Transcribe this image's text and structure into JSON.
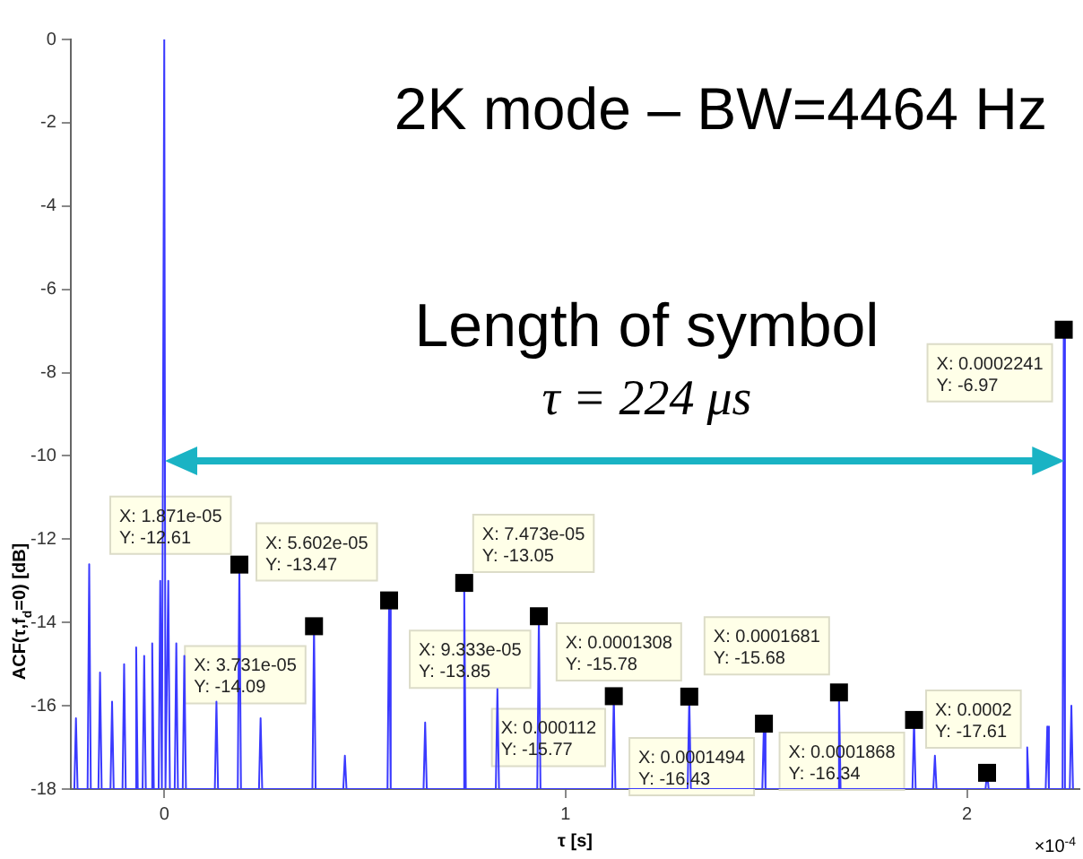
{
  "chart_data": {
    "type": "line",
    "xlabel": "τ [s]",
    "ylabel": "ACF(τ,f$_{d}$=0) [dB]",
    "xlim": [
      -0.233,
      2.28
    ],
    "xticks": [
      0,
      1,
      2
    ],
    "ylim": [
      -18,
      0
    ],
    "yticks": [
      -18,
      -16,
      -14,
      -12,
      -10,
      -8,
      -6,
      -4,
      -2,
      0
    ],
    "grid": false,
    "legend": false,
    "marker": "none",
    "line_style": "solid",
    "series": [
      {
        "color": "#3a3aff",
        "x": [
          -0.224,
          -0.22,
          -0.216,
          -0.191,
          -0.187,
          -0.183,
          -0.164,
          -0.16,
          -0.156,
          -0.134,
          -0.13,
          -0.126,
          -0.104,
          -0.1,
          -0.096,
          -0.074,
          -0.07,
          -0.066,
          -0.054,
          -0.05,
          -0.046,
          -0.034,
          -0.03,
          -0.026,
          -0.014,
          -0.01,
          -0.006,
          -0.003,
          0,
          0.003,
          0.006,
          0.01,
          0.014,
          0.026,
          0.03,
          0.034,
          0.046,
          0.05,
          0.054,
          0.126,
          0.13,
          0.134,
          0.1831,
          0.1871,
          0.1911,
          0.236,
          0.24,
          0.244,
          0.3691,
          0.3731,
          0.3771,
          0.446,
          0.45,
          0.454,
          0.5562,
          0.5602,
          0.5642,
          0.646,
          0.65,
          0.654,
          0.7433,
          0.7473,
          0.7513,
          0.826,
          0.83,
          0.834,
          0.9293,
          0.9333,
          0.9373,
          1.116,
          1.12,
          1.124,
          1.304,
          1.308,
          1.312,
          1.49,
          1.494,
          1.498,
          1.677,
          1.681,
          1.685,
          1.864,
          1.868,
          1.872,
          1.916,
          1.92,
          1.924,
          2.046,
          2.05,
          2.054,
          2.146,
          2.15,
          2.154,
          2.196,
          2.2,
          2.204,
          2.238,
          2.241,
          2.244,
          2.256,
          2.26,
          2.264
        ],
        "values": [
          -18,
          -16.3,
          -18,
          -18,
          -12.6,
          -18,
          -18,
          -15.2,
          -18,
          -18,
          -15.9,
          -18,
          -18,
          -15,
          -18,
          -18,
          -14.6,
          -18,
          -18,
          -14.8,
          -18,
          -18,
          -14.5,
          -18,
          -18,
          -13,
          -18,
          -18,
          0,
          -18,
          -18,
          -13,
          -18,
          -18,
          -14.5,
          -18,
          -18,
          -14.8,
          -18,
          -18,
          -15.9,
          -18,
          -18,
          -12.61,
          -18,
          -18,
          -16.3,
          -18,
          -18,
          -14.09,
          -18,
          -18,
          -17.2,
          -18,
          -18,
          -13.47,
          -18,
          -18,
          -16.4,
          -18,
          -18,
          -13.05,
          -18,
          -18,
          -15.6,
          -18,
          -18,
          -13.85,
          -18,
          -18,
          -15.77,
          -18,
          -18,
          -15.78,
          -18,
          -18,
          -16.43,
          -18,
          -18,
          -15.68,
          -18,
          -18,
          -16.34,
          -18,
          -18,
          -17.2,
          -18,
          -18,
          -17.61,
          -18,
          -18,
          -17,
          -18,
          -18,
          -16.5,
          -18,
          -18,
          -6.97,
          -18,
          -18,
          -16,
          -18
        ]
      }
    ],
    "annotations": [
      "2K mode – BW=4464 Hz",
      "×10$^{-4}$",
      "Length of symbol\nτ = 224 μs",
      {
        "text": "X: 1.871e-05\nY: -12.61",
        "x": 0.1871,
        "y": -12.61
      },
      {
        "text": "X: 3.731e-05\nY: -14.09",
        "x": 0.3731,
        "y": -14.09
      },
      {
        "text": "X: 5.602e-05\nY: -13.47",
        "x": 0.5602,
        "y": -13.47
      },
      {
        "text": "X: 7.473e-05\nY: -13.05",
        "x": 0.7473,
        "y": -13.05
      },
      {
        "text": "X: 9.333e-05\nY: -13.85",
        "x": 0.9333,
        "y": -13.85
      },
      {
        "text": "X: 0.000112\nY: -15.77",
        "x": 1.12,
        "y": -15.77
      },
      {
        "text": "X: 0.0001308\nY: -15.78",
        "x": 1.308,
        "y": -15.78
      },
      {
        "text": "X: 0.0001494\nY: -16.43",
        "x": 1.494,
        "y": -16.43
      },
      {
        "text": "X: 0.0001681\nY: -15.68",
        "x": 1.681,
        "y": -15.68
      },
      {
        "text": "X: 0.0001868\nY: -16.34",
        "x": 1.868,
        "y": -16.34
      },
      {
        "text": "X: 0.0002\nY: -17.61",
        "x": 2.05,
        "y": -17.61
      },
      {
        "text": "X: 0.0002241\nY: -6.97",
        "x": 2.241,
        "y": -6.97
      }
    ]
  }
}
